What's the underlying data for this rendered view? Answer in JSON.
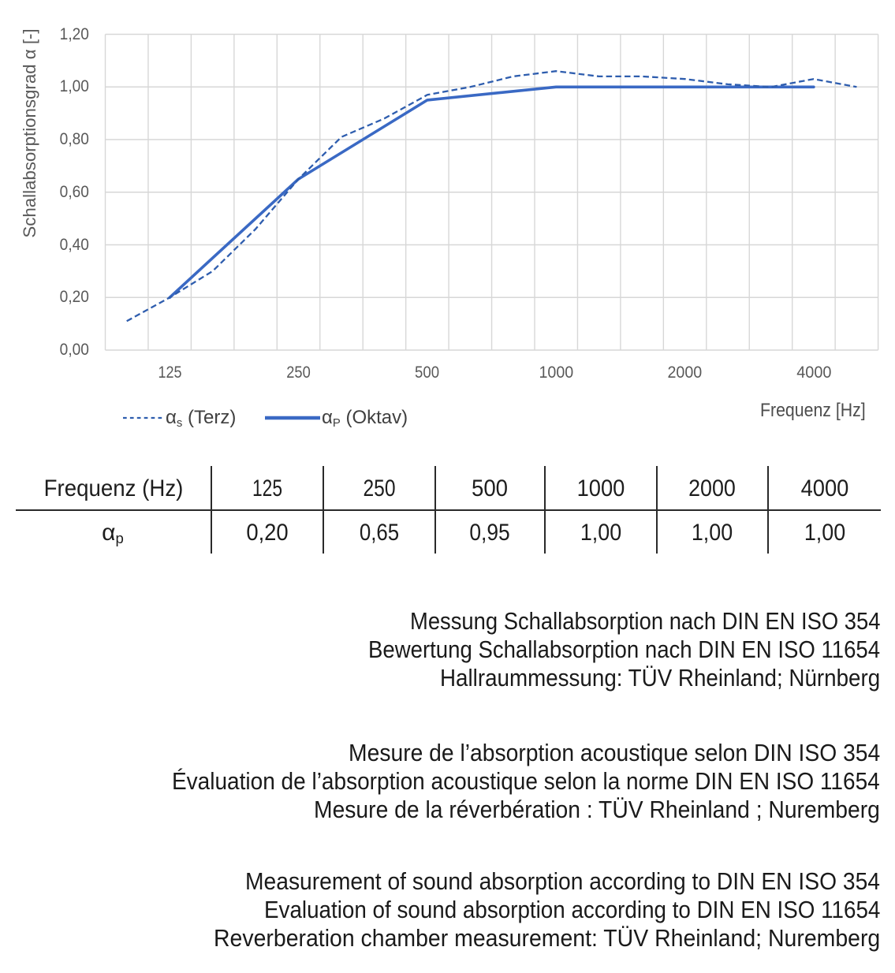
{
  "chart_data": {
    "type": "line",
    "title": "",
    "xlabel": "Frequenz [Hz]",
    "ylabel": "Schallabsorptionsgrad α [-]",
    "x_axis_type": "category-log-third-octave",
    "categories": [
      100,
      125,
      160,
      200,
      250,
      315,
      400,
      500,
      630,
      800,
      1000,
      1250,
      1600,
      2000,
      2500,
      3150,
      4000,
      5000
    ],
    "x_tick_labels": [
      "125",
      "250",
      "500",
      "1000",
      "2000",
      "4000"
    ],
    "y_tick_labels": [
      "0,00",
      "0,20",
      "0,40",
      "0,60",
      "0,80",
      "1,00",
      "1,20"
    ],
    "ylim": [
      0,
      1.2
    ],
    "y_step": 0.2,
    "grid": true,
    "legend_position": "bottom-left",
    "series": [
      {
        "name": "αs (Terz)",
        "style": "dashed",
        "x": [
          100,
          125,
          160,
          200,
          250,
          315,
          400,
          500,
          630,
          800,
          1000,
          1250,
          1600,
          2000,
          2500,
          3150,
          4000,
          5000
        ],
        "values": [
          0.11,
          0.2,
          0.3,
          0.46,
          0.65,
          0.81,
          0.88,
          0.97,
          1.0,
          1.04,
          1.06,
          1.04,
          1.04,
          1.03,
          1.01,
          1.0,
          1.03,
          1.0
        ]
      },
      {
        "name": "αP (Oktav)",
        "style": "solid",
        "x": [
          125,
          250,
          500,
          1000,
          2000,
          4000
        ],
        "values": [
          0.2,
          0.65,
          0.95,
          1.0,
          1.0,
          1.0
        ]
      }
    ]
  },
  "legend": {
    "terz": {
      "alpha": "α",
      "sub": "s",
      "rest": " (Terz)"
    },
    "oktav": {
      "alpha": "α",
      "sub": "P",
      "rest": " (Oktav)"
    }
  },
  "table": {
    "header_label": "Frequenz (Hz)",
    "header_values": [
      "125",
      "250",
      "500",
      "1000",
      "2000",
      "4000"
    ],
    "row_label": {
      "alpha": "α",
      "sub": "p"
    },
    "row_values": [
      "0,20",
      "0,65",
      "0,95",
      "1,00",
      "1,00",
      "1,00"
    ]
  },
  "notes": {
    "german": [
      "Messung Schallabsorption nach DIN EN ISO 354",
      "Bewertung Schallabsorption nach DIN EN ISO 11654",
      "Hallraummessung: TÜV Rheinland; Nürnberg"
    ],
    "french": [
      "Mesure de l’absorption acoustique selon DIN ISO 354",
      "Évaluation de l’absorption acoustique selon la norme DIN EN ISO 11654",
      "Mesure de la réverbération : TÜV Rheinland ; Nuremberg"
    ],
    "english": [
      "Measurement of sound absorption according to DIN EN ISO 354",
      "Evaluation of sound absorption according to DIN EN ISO 11654",
      "Reverberation chamber measurement: TÜV Rheinland; Nuremberg"
    ]
  },
  "colors": {
    "solid_line": "#3a69c4",
    "dashed_line": "#2e5dae",
    "grid": "#d7d7d7",
    "axis_text": "#595959",
    "legend_text": "#404040",
    "table_line": "#2a2a2a",
    "table_text": "#1d1d1d",
    "note_text": "#1a1a1a",
    "background": "#ffffff"
  }
}
